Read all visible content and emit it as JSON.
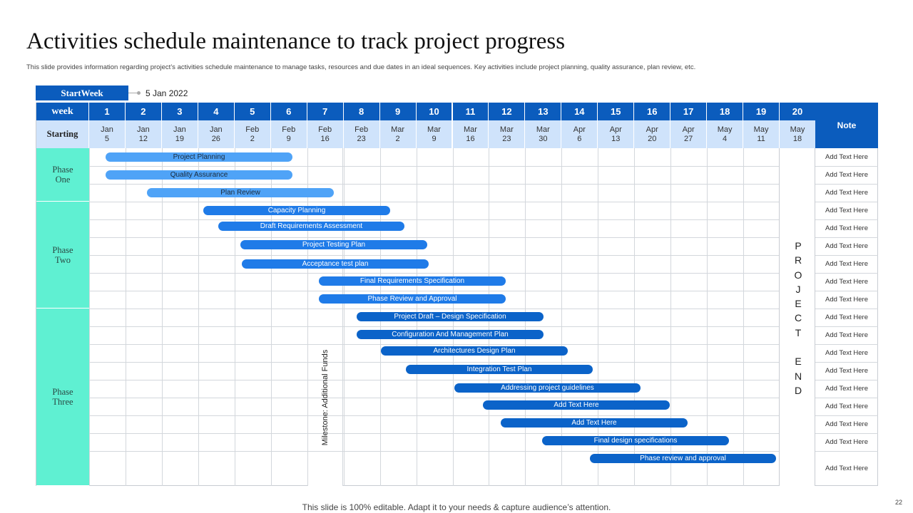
{
  "title": "Activities schedule maintenance to track project progress",
  "subtitle": "This slide provides information regarding project’s activities schedule maintenance to manage tasks, resources and due dates in an ideal sequences. Key activities include project planning, quality assurance, plan review, etc.",
  "start_week": {
    "label": "StartWeek",
    "date": "5 Jan 2022"
  },
  "header": {
    "week_label": "week",
    "starting_label": "Starting",
    "note_label": "Note",
    "weeks": [
      "1",
      "2",
      "3",
      "4",
      "5",
      "6",
      "7",
      "8",
      "9",
      "10",
      "11",
      "12",
      "13",
      "14",
      "15",
      "16",
      "17",
      "18",
      "19",
      "20"
    ],
    "dates": [
      [
        "Jan",
        "5"
      ],
      [
        "Jan",
        "12"
      ],
      [
        "Jan",
        "19"
      ],
      [
        "Jan",
        "26"
      ],
      [
        "Feb",
        "2"
      ],
      [
        "Feb",
        "9"
      ],
      [
        "Feb",
        "16"
      ],
      [
        "Feb",
        "23"
      ],
      [
        "Mar",
        "2"
      ],
      [
        "Mar",
        "9"
      ],
      [
        "Mar",
        "16"
      ],
      [
        "Mar",
        "23"
      ],
      [
        "Mar",
        "30"
      ],
      [
        "Apr",
        "6"
      ],
      [
        "Apr",
        "13"
      ],
      [
        "Apr",
        "20"
      ],
      [
        "Apr",
        "27"
      ],
      [
        "May",
        "4"
      ],
      [
        "May",
        "11"
      ],
      [
        "May",
        "18"
      ]
    ]
  },
  "phases": [
    {
      "label": [
        "Phase",
        "One"
      ]
    },
    {
      "label": [
        "Phase",
        "Two"
      ]
    },
    {
      "label": [
        "Phase",
        "Three"
      ]
    }
  ],
  "tasks": [
    "Project Planning",
    "Quality Assurance",
    "Plan Review",
    "Capacity Planning",
    "Draft Requirements  Assessment",
    "Project Testing Plan",
    "Acceptance test plan",
    "Final Requirements Specification",
    "Phase Review and Approval",
    "Project  Draft – Design Specification",
    "Configuration And Management  Plan",
    "Architectures Design Plan",
    "Integration Test Plan",
    "Addressing project guidelines",
    "Add Text Here",
    "Add Text Here",
    "Final design specifications",
    "Phase review and approval"
  ],
  "notes": [
    "Add Text Here",
    "Add Text Here",
    "Add Text Here",
    "Add Text Here",
    "Add Text Here",
    "Add Text Here",
    "Add Text Here",
    "Add Text Here",
    "Add Text Here",
    "Add Text Here",
    "Add Text Here",
    "Add Text Here",
    "Add Text Here",
    "Add Text Here",
    "Add Text Here",
    "Add Text Here",
    "Add Text Here",
    "Add Text Here"
  ],
  "milestone": "Milestone: Additional Funds",
  "project_end": [
    "P",
    "R",
    "O",
    "J",
    "E",
    "C",
    "T",
    "",
    "E",
    "N",
    "D"
  ],
  "footer": "This slide is 100% editable. Adapt it to your needs & capture audience’s attention.",
  "page_number": "22",
  "colors": {
    "header_blue": "#0b5cbd",
    "date_row": "#cfe3fb",
    "phase_teal": "#5ff0d2",
    "bar_light": "#4fa3f7",
    "bar_mid": "#1f7be8",
    "bar_dark": "#0b63c9"
  }
}
